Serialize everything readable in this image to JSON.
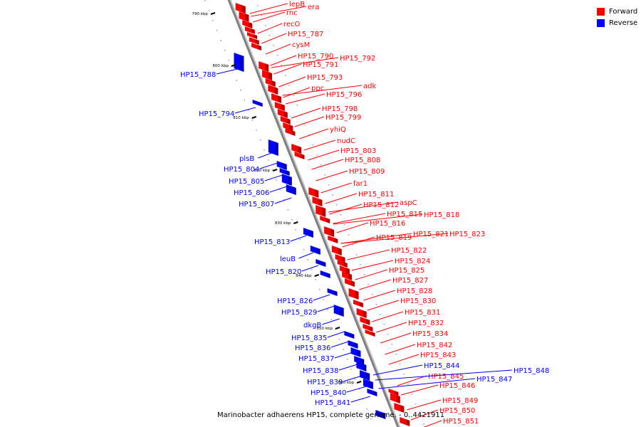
{
  "legend": {
    "forward_label": "Forward",
    "reverse_label": "Reverse",
    "forward_color": "#ff0000",
    "reverse_color": "#0000ff"
  },
  "caption": "Marinobacter adhaerens HP15, complete genome. - 0..4421911",
  "colors": {
    "backbone": "#808080",
    "forward": "#ff0000",
    "reverse": "#0000ff",
    "tick": "#000000"
  },
  "ticks": [
    "790 kbp",
    "800 kbp",
    "810 kbp",
    "820 kbp",
    "830 kbp",
    "840 kbp",
    "850 kbp",
    "860 kbp"
  ],
  "forward_labels": [
    "lepB",
    "era",
    "rnc",
    "recO",
    "HP15_787",
    "cysM",
    "HP15_790",
    "HP15_792",
    "HP15_791",
    "HP15_793",
    "ppc",
    "adk",
    "HP15_796",
    "HP15_798",
    "HP15_799",
    "yhiQ",
    "nudC",
    "HP15_803",
    "HP15_808",
    "HP15_809",
    "far1",
    "HP15_811",
    "HP15_812",
    "aspC",
    "HP15_815",
    "HP15_818",
    "HP15_816",
    "HP15_819",
    "HP15_821",
    "HP15_823",
    "HP15_822",
    "HP15_824",
    "HP15_825",
    "HP15_827",
    "HP15_828",
    "HP15_830",
    "HP15_831",
    "HP15_832",
    "HP15_834",
    "HP15_842",
    "HP15_843",
    "HP15_845",
    "HP15_846",
    "HP15_849",
    "HP15_850",
    "HP15_851"
  ],
  "reverse_labels": [
    "HP15_788",
    "HP15_794",
    "plsB",
    "HP15_804",
    "HP15_805",
    "HP15_806",
    "HP15_807",
    "HP15_813",
    "leuB",
    "HP15_820",
    "HP15_826",
    "HP15_829",
    "dkgB",
    "HP15_835",
    "HP15_836",
    "HP15_837",
    "HP15_838",
    "HP15_839",
    "HP15_840",
    "HP15_841",
    "HP15_844",
    "HP15_847",
    "HP15_848"
  ]
}
